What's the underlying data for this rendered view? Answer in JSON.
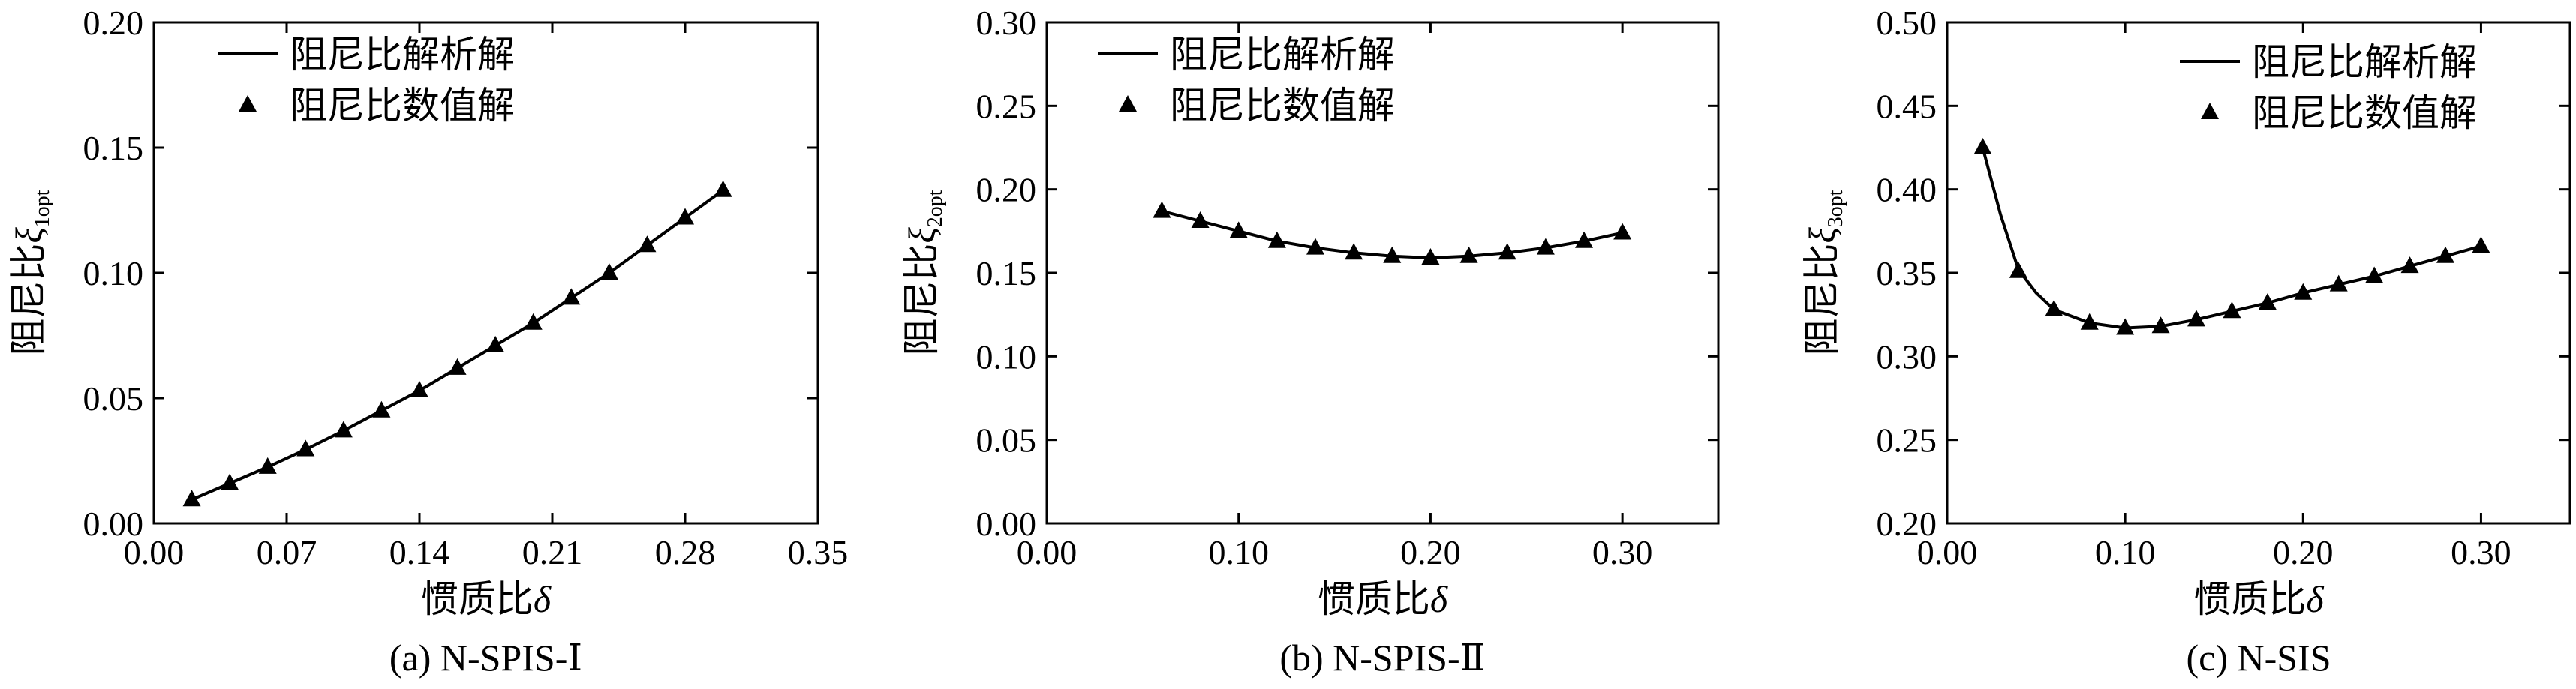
{
  "chart_data": [
    {
      "type": "line",
      "caption": "(a) N-SPIS-Ⅰ",
      "xlabel": "惯质比",
      "xlabel_symbol": "δ",
      "ylabel": "阻尼比",
      "ylabel_symbol": "ξ",
      "ylabel_subscript": "1opt",
      "xlim": [
        0,
        0.35
      ],
      "ylim": [
        0,
        0.2
      ],
      "xticks": [
        "0.00",
        "0.07",
        "0.14",
        "0.21",
        "0.28",
        "0.35"
      ],
      "yticks": [
        "0.00",
        "0.05",
        "0.10",
        "0.15",
        "0.20"
      ],
      "legend_position": "top-left",
      "series": [
        {
          "name": "阻尼比解析解",
          "style": "line",
          "x": [
            0.02,
            0.04,
            0.06,
            0.08,
            0.1,
            0.12,
            0.14,
            0.16,
            0.18,
            0.2,
            0.22,
            0.24,
            0.26,
            0.28,
            0.3
          ],
          "y": [
            0.0095,
            0.016,
            0.0225,
            0.0295,
            0.037,
            0.045,
            0.053,
            0.062,
            0.071,
            0.08,
            0.09,
            0.1,
            0.111,
            0.122,
            0.133
          ]
        },
        {
          "name": "阻尼比数值解",
          "style": "triangle",
          "x": [
            0.02,
            0.04,
            0.06,
            0.08,
            0.1,
            0.12,
            0.14,
            0.16,
            0.18,
            0.2,
            0.22,
            0.24,
            0.26,
            0.28,
            0.3
          ],
          "y": [
            0.0095,
            0.016,
            0.0225,
            0.0295,
            0.037,
            0.045,
            0.053,
            0.062,
            0.071,
            0.08,
            0.09,
            0.1,
            0.111,
            0.122,
            0.133
          ]
        }
      ]
    },
    {
      "type": "line",
      "caption": "(b) N-SPIS-Ⅱ",
      "xlabel": "惯质比",
      "xlabel_symbol": "δ",
      "ylabel": "阻尼比",
      "ylabel_symbol": "ξ",
      "ylabel_subscript": "2opt",
      "xlim": [
        0,
        0.35
      ],
      "ylim": [
        0,
        0.3
      ],
      "xticks": [
        "0.00",
        "0.10",
        "0.20",
        "0.30"
      ],
      "yticks": [
        "0.00",
        "0.05",
        "0.10",
        "0.15",
        "0.20",
        "0.25",
        "0.30"
      ],
      "legend_position": "top-left",
      "series": [
        {
          "name": "阻尼比解析解",
          "style": "line",
          "x": [
            0.06,
            0.08,
            0.1,
            0.12,
            0.14,
            0.16,
            0.18,
            0.2,
            0.22,
            0.24,
            0.26,
            0.28,
            0.3
          ],
          "y": [
            0.187,
            0.181,
            0.175,
            0.169,
            0.165,
            0.162,
            0.16,
            0.159,
            0.16,
            0.162,
            0.165,
            0.169,
            0.174
          ]
        },
        {
          "name": "阻尼比数值解",
          "style": "triangle",
          "x": [
            0.06,
            0.08,
            0.1,
            0.12,
            0.14,
            0.16,
            0.18,
            0.2,
            0.22,
            0.24,
            0.26,
            0.28,
            0.3
          ],
          "y": [
            0.187,
            0.181,
            0.175,
            0.169,
            0.165,
            0.162,
            0.16,
            0.159,
            0.16,
            0.162,
            0.165,
            0.169,
            0.174
          ]
        }
      ]
    },
    {
      "type": "line",
      "caption": "(c) N-SIS",
      "xlabel": "惯质比",
      "xlabel_symbol": "δ",
      "ylabel": "阻尼比",
      "ylabel_symbol": "ξ",
      "ylabel_subscript": "3opt",
      "xlim": [
        0,
        0.35
      ],
      "ylim": [
        0.2,
        0.5
      ],
      "xticks": [
        "0.00",
        "0.10",
        "0.20",
        "0.30"
      ],
      "yticks": [
        "0.20",
        "0.25",
        "0.30",
        "0.35",
        "0.40",
        "0.45",
        "0.50"
      ],
      "legend_position": "top-right",
      "series": [
        {
          "name": "阻尼比解析解",
          "style": "line",
          "x": [
            0.02,
            0.03,
            0.04,
            0.05,
            0.06,
            0.08,
            0.1,
            0.12,
            0.14,
            0.16,
            0.18,
            0.2,
            0.22,
            0.24,
            0.26,
            0.28,
            0.3
          ],
          "y": [
            0.425,
            0.385,
            0.352,
            0.338,
            0.328,
            0.32,
            0.317,
            0.318,
            0.322,
            0.327,
            0.332,
            0.338,
            0.343,
            0.348,
            0.354,
            0.36,
            0.366
          ]
        },
        {
          "name": "阻尼比数值解",
          "style": "triangle",
          "x": [
            0.02,
            0.04,
            0.06,
            0.08,
            0.1,
            0.12,
            0.14,
            0.16,
            0.18,
            0.2,
            0.22,
            0.24,
            0.26,
            0.28,
            0.3
          ],
          "y": [
            0.425,
            0.351,
            0.328,
            0.32,
            0.317,
            0.318,
            0.322,
            0.327,
            0.332,
            0.338,
            0.343,
            0.348,
            0.354,
            0.36,
            0.366
          ]
        }
      ]
    }
  ]
}
